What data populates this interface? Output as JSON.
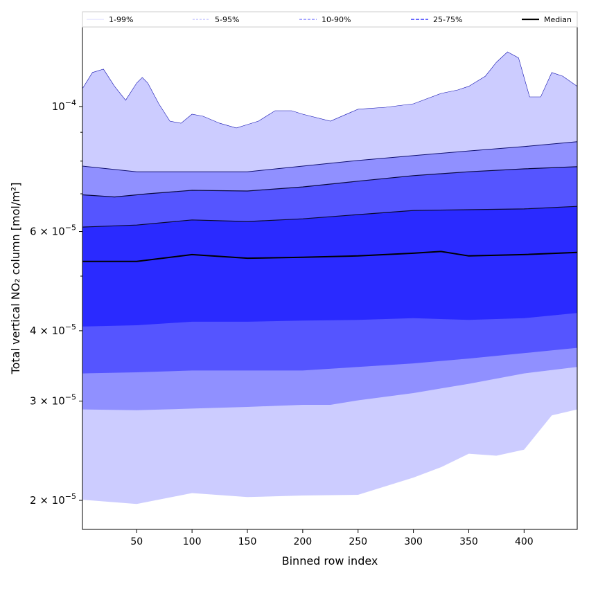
{
  "chart_data": {
    "type": "area",
    "title": "",
    "xlabel": "Binned row index",
    "ylabel": "Total vertical NO₂ column [mol/m²]",
    "xlim": [
      1,
      448
    ],
    "ylim": [
      1.776e-05,
      0.0001384
    ],
    "yscale": "log",
    "grid": false,
    "legend_placement": "top (above plot, horizontal)",
    "x_ticks": [
      {
        "value": 50,
        "label": "50"
      },
      {
        "value": 100,
        "label": "100"
      },
      {
        "value": 150,
        "label": "150"
      },
      {
        "value": 200,
        "label": "200"
      },
      {
        "value": 250,
        "label": "250"
      },
      {
        "value": 300,
        "label": "300"
      },
      {
        "value": 350,
        "label": "350"
      },
      {
        "value": 400,
        "label": "400"
      }
    ],
    "y_ticks": [
      {
        "value": 0.0001,
        "mant": "10",
        "exp": "−4"
      },
      {
        "value": 6e-05,
        "mant": "6 × 10",
        "exp": "−5"
      },
      {
        "value": 4e-05,
        "mant": "4 × 10",
        "exp": "−5"
      },
      {
        "value": 3e-05,
        "mant": "3 × 10",
        "exp": "−5"
      },
      {
        "value": 2e-05,
        "mant": "2 × 10",
        "exp": "−5"
      }
    ],
    "y_minor_ticks": [
      9e-05,
      8e-05,
      7e-05,
      5e-05
    ],
    "legend": [
      {
        "label": "1-99%",
        "color": "#ccccff",
        "style": "thin"
      },
      {
        "label": "5-95%",
        "color": "#9090ff",
        "style": "thin-dash"
      },
      {
        "label": "10-90%",
        "color": "#7070ff",
        "style": "dash"
      },
      {
        "label": "25-75%",
        "color": "#5555ff",
        "style": "thick-dash"
      },
      {
        "label": "Median",
        "color": "#000000",
        "style": "solid"
      }
    ],
    "bands": [
      {
        "name": "1-99%",
        "upper": "p99",
        "lower": "p1",
        "color": "#ccccff"
      },
      {
        "name": "5-95%",
        "upper": "p95",
        "lower": "p5",
        "color": "#9090ff"
      },
      {
        "name": "10-90%",
        "upper": "p90",
        "lower": "p10",
        "color": "#5555ff"
      },
      {
        "name": "25-75%",
        "upper": "p75",
        "lower": "p25",
        "color": "#2a2aff"
      }
    ],
    "series": {
      "p99": {
        "x": [
          1,
          10,
          20,
          30,
          40,
          50,
          55,
          60,
          70,
          80,
          90,
          100,
          110,
          125,
          140,
          150,
          160,
          175,
          190,
          200,
          225,
          250,
          275,
          300,
          325,
          340,
          350,
          365,
          375,
          385,
          395,
          405,
          415,
          425,
          435,
          448
        ],
        "y": [
          0.0001076,
          0.0001149,
          0.0001165,
          0.0001086,
          0.0001026,
          0.0001101,
          0.0001126,
          0.0001101,
          0.0001011,
          9.42e-05,
          9.34e-05,
          9.69e-05,
          9.61e-05,
          9.34e-05,
          9.16e-05,
          9.29e-05,
          9.42e-05,
          9.83e-05,
          9.83e-05,
          9.69e-05,
          9.42e-05,
          9.89e-05,
          9.97e-05,
          0.0001011,
          0.0001055,
          0.000107,
          0.0001086,
          0.0001132,
          0.0001198,
          0.000125,
          0.000122,
          0.000104,
          0.000104,
          0.0001149,
          0.0001132,
          0.0001086
        ]
      },
      "p95": {
        "x": [
          1,
          50,
          100,
          150,
          200,
          250,
          300,
          350,
          400,
          448
        ],
        "y": [
          7.84e-05,
          7.66e-05,
          7.66e-05,
          7.66e-05,
          7.84e-05,
          8.02e-05,
          8.18e-05,
          8.34e-05,
          8.49e-05,
          8.66e-05
        ]
      },
      "p90": {
        "x": [
          1,
          30,
          60,
          100,
          150,
          200,
          250,
          300,
          350,
          400,
          448
        ],
        "y": [
          6.97e-05,
          6.91e-05,
          7e-05,
          7.1e-05,
          7.08e-05,
          7.2e-05,
          7.37e-05,
          7.54e-05,
          7.66e-05,
          7.75e-05,
          7.82e-05
        ]
      },
      "p75": {
        "x": [
          1,
          50,
          100,
          150,
          200,
          250,
          300,
          350,
          400,
          448
        ],
        "y": [
          6.11e-05,
          6.16e-05,
          6.29e-05,
          6.25e-05,
          6.32e-05,
          6.43e-05,
          6.54e-05,
          6.56e-05,
          6.58e-05,
          6.65e-05
        ]
      },
      "median": {
        "x": [
          1,
          50,
          100,
          150,
          200,
          250,
          300,
          325,
          350,
          400,
          448
        ],
        "y": [
          5.31e-05,
          5.31e-05,
          5.46e-05,
          5.38e-05,
          5.4e-05,
          5.43e-05,
          5.49e-05,
          5.53e-05,
          5.43e-05,
          5.46e-05,
          5.51e-05
        ]
      },
      "p25": {
        "x": [
          1,
          50,
          100,
          150,
          200,
          250,
          300,
          350,
          400,
          448
        ],
        "y": [
          4.07e-05,
          4.09e-05,
          4.15e-05,
          4.15e-05,
          4.17e-05,
          4.18e-05,
          4.21e-05,
          4.18e-05,
          4.21e-05,
          4.3e-05
        ]
      },
      "p10": {
        "x": [
          1,
          50,
          100,
          150,
          200,
          250,
          300,
          350,
          400,
          448
        ],
        "y": [
          3.36e-05,
          3.375e-05,
          3.4e-05,
          3.4e-05,
          3.4e-05,
          3.45e-05,
          3.5e-05,
          3.57e-05,
          3.65e-05,
          3.73e-05
        ]
      },
      "p5": {
        "x": [
          1,
          50,
          100,
          150,
          200,
          225,
          250,
          300,
          350,
          400,
          448
        ],
        "y": [
          2.9e-05,
          2.89e-05,
          2.91e-05,
          2.93e-05,
          2.955e-05,
          2.955e-05,
          3.01e-05,
          3.1e-05,
          3.22e-05,
          3.36e-05,
          3.45e-05
        ]
      },
      "p1": {
        "x": [
          1,
          50,
          100,
          150,
          200,
          250,
          300,
          325,
          350,
          375,
          400,
          425,
          448
        ],
        "y": [
          2.005e-05,
          1.97e-05,
          2.06e-05,
          2.027e-05,
          2.04e-05,
          2.046e-05,
          2.195e-05,
          2.29e-05,
          2.42e-05,
          2.4e-05,
          2.46e-05,
          2.83e-05,
          2.9e-05
        ]
      }
    },
    "lines": [
      {
        "series": "p99",
        "color": "#1010b0",
        "width": 0.6
      },
      {
        "series": "p95",
        "color": "#101070",
        "width": 1
      },
      {
        "series": "p90",
        "color": "#0a0a40",
        "width": 1.2
      },
      {
        "series": "p75",
        "color": "#0a0a30",
        "width": 1.2
      },
      {
        "series": "median",
        "color": "#000000",
        "width": 2
      }
    ]
  }
}
